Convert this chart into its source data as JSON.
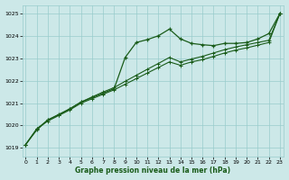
{
  "title": "Graphe pression niveau de la mer (hPa)",
  "bg_color": "#cce8e8",
  "grid_color": "#99cccc",
  "line_color": "#1a5c1a",
  "x_ticks": [
    0,
    1,
    2,
    3,
    4,
    5,
    6,
    7,
    8,
    9,
    10,
    11,
    12,
    13,
    14,
    15,
    16,
    17,
    18,
    19,
    20,
    21,
    22,
    23
  ],
  "y_ticks": [
    1019,
    1020,
    1021,
    1022,
    1023,
    1024,
    1025
  ],
  "ylim": [
    1018.6,
    1025.4
  ],
  "xlim": [
    -0.3,
    23.3
  ],
  "series1": [
    1019.15,
    1019.8,
    1020.25,
    1020.5,
    1020.75,
    1021.05,
    1021.25,
    1021.45,
    1021.65,
    1023.05,
    1023.72,
    1023.85,
    1024.02,
    1024.32,
    1023.88,
    1023.68,
    1023.62,
    1023.58,
    1023.68,
    1023.68,
    1023.72,
    1023.88,
    1024.12,
    1025.02
  ],
  "series2": [
    1019.15,
    1019.85,
    1020.2,
    1020.45,
    1020.7,
    1021.0,
    1021.2,
    1021.4,
    1021.6,
    1021.85,
    1022.1,
    1022.35,
    1022.6,
    1022.85,
    1022.7,
    1022.85,
    1022.95,
    1023.1,
    1023.25,
    1023.38,
    1023.48,
    1023.6,
    1023.72,
    1025.02
  ],
  "series3": [
    1019.15,
    1019.85,
    1020.25,
    1020.48,
    1020.75,
    1021.05,
    1021.28,
    1021.5,
    1021.7,
    1021.98,
    1022.25,
    1022.52,
    1022.78,
    1023.05,
    1022.85,
    1022.98,
    1023.1,
    1023.25,
    1023.4,
    1023.52,
    1023.62,
    1023.72,
    1023.82,
    1025.02
  ]
}
